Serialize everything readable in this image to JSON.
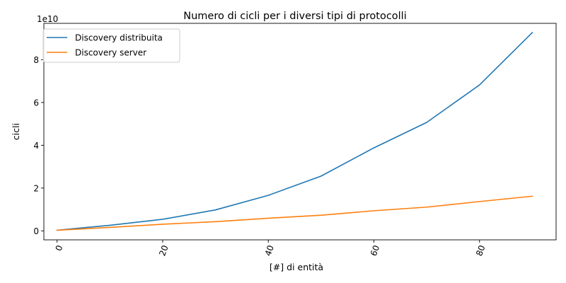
{
  "chart_data": {
    "type": "line",
    "title": "Numero di cicli per i diversi tipi di protocolli",
    "xlabel": "[#] di entità",
    "ylabel": "cicli",
    "y_offset_label": "1e10",
    "y_scale_factor": 10000000000,
    "x": [
      0,
      10,
      20,
      30,
      40,
      50,
      60,
      70,
      80,
      90
    ],
    "xlim": [
      -2.5,
      94.5
    ],
    "ylim": [
      -4200000000.0,
      97000000000.0
    ],
    "xticks": [
      0,
      20,
      40,
      60,
      80
    ],
    "yticks": [
      0,
      20000000000,
      40000000000,
      60000000000,
      80000000000
    ],
    "xtick_labels": [
      "0",
      "20",
      "40",
      "60",
      "80"
    ],
    "ytick_labels": [
      "0",
      "2",
      "4",
      "6",
      "8"
    ],
    "xtick_rotation": "rotated ~70°",
    "grid": false,
    "legend_position": "top-left",
    "series": [
      {
        "name": "Discovery distribuita",
        "color": "#1f77b4",
        "values": [
          300000000,
          2600000000,
          5400000000,
          9800000000,
          16600000000,
          25600000000,
          38800000000,
          50700000000,
          68200000000,
          92700000000
        ]
      },
      {
        "name": "Discovery server",
        "color": "#ff7f0e",
        "values": [
          300000000,
          1600000000,
          3100000000,
          4300000000,
          5900000000,
          7300000000,
          9400000000,
          11100000000,
          13700000000,
          16200000000
        ]
      }
    ]
  }
}
